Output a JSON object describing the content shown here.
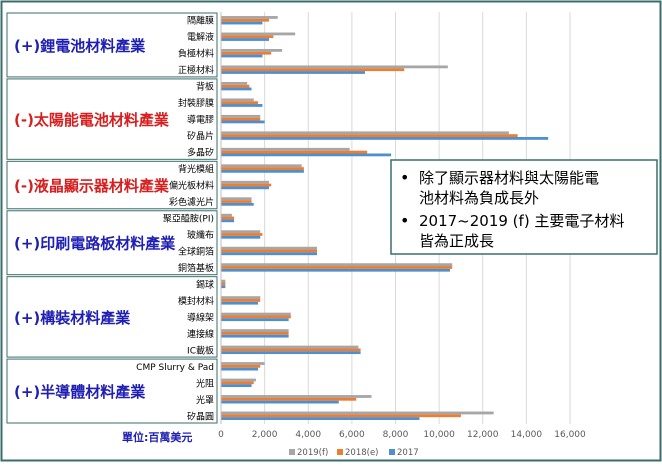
{
  "chart_data": {
    "type": "bar",
    "orientation": "horizontal",
    "unit_label": "單位:百萬美元",
    "x_ticks": [
      "0",
      "2,000",
      "4,000",
      "6,000",
      "8,000",
      "10,000",
      "12,000",
      "14,000",
      "16,000"
    ],
    "xlim": [
      0,
      16000
    ],
    "grid": true,
    "legend_position": "bottom",
    "colors": {
      "2019(f)": "#a6a6a6",
      "2018(e)": "#ed7d31",
      "2017": "#4e8fd0",
      "group_label": "#1f1fb4",
      "box_border": "#3a6e6e"
    },
    "series": [
      {
        "name": "2019(f)"
      },
      {
        "name": "2018(e)"
      },
      {
        "name": "2017"
      }
    ],
    "groups": [
      {
        "label": "(+)鋰電池材料產業",
        "color": "#1f1fb4",
        "categories": [
          {
            "name": "隔離膜",
            "values": [
              2600,
              2200,
              1900
            ]
          },
          {
            "name": "電解液",
            "values": [
              3400,
              2400,
              2200
            ]
          },
          {
            "name": "負極材料",
            "values": [
              2800,
              2300,
              1900
            ]
          },
          {
            "name": "正極材料",
            "values": [
              10400,
              8400,
              6600
            ]
          }
        ]
      },
      {
        "label": "(-)太陽能電池材料產業",
        "color": "#d81e1e",
        "categories": [
          {
            "name": "背板",
            "values": [
              1200,
              1300,
              1400
            ]
          },
          {
            "name": "封裝膠膜",
            "values": [
              1500,
              1700,
              1900
            ]
          },
          {
            "name": "導電膠",
            "values": [
              1800,
              1800,
              2000
            ]
          },
          {
            "name": "矽晶片",
            "values": [
              13200,
              13600,
              15000
            ]
          },
          {
            "name": "多晶矽",
            "values": [
              5900,
              6700,
              7800
            ]
          }
        ]
      },
      {
        "label": "(-)液晶顯示器材料產業",
        "color": "#d81e1e",
        "categories": [
          {
            "name": "背光模組",
            "values": [
              3700,
              3800,
              3800
            ]
          },
          {
            "name": "偏光板材料",
            "values": [
              2200,
              2300,
              2200
            ]
          },
          {
            "name": "彩色濾光片",
            "values": [
              1400,
              1400,
              1500
            ]
          }
        ]
      },
      {
        "label": "(+)印刷電路板材料產業",
        "color": "#1f1fb4",
        "categories": [
          {
            "name": "聚亞醯胺(PI)",
            "values": [
              500,
              600,
              600
            ]
          },
          {
            "name": "玻纖布",
            "values": [
              1800,
              1900,
              1800
            ]
          },
          {
            "name": "全球銅箔",
            "values": [
              4400,
              4400,
              4400
            ]
          },
          {
            "name": "銅箔基板",
            "values": [
              10600,
              10600,
              10500
            ]
          }
        ]
      },
      {
        "label": "(+)構裝材料產業",
        "color": "#1f1fb4",
        "categories": [
          {
            "name": "錫球",
            "values": [
              200,
              200,
              200
            ]
          },
          {
            "name": "模封材料",
            "values": [
              1800,
              1800,
              1700
            ]
          },
          {
            "name": "導線架",
            "values": [
              3200,
              3200,
              3100
            ]
          },
          {
            "name": "連接線",
            "values": [
              3100,
              3100,
              3100
            ]
          },
          {
            "name": "IC載板",
            "values": [
              6300,
              6400,
              6400
            ]
          }
        ]
      },
      {
        "label": "(+)半導體材料產業",
        "color": "#1f1fb4",
        "categories": [
          {
            "name": "CMP Slurry & Pad",
            "values": [
              2000,
              1800,
              1700
            ]
          },
          {
            "name": "光阻",
            "values": [
              1600,
              1500,
              1400
            ]
          },
          {
            "name": "光罩",
            "values": [
              6900,
              6200,
              5400
            ]
          },
          {
            "name": "矽晶圓",
            "values": [
              12500,
              11000,
              9100
            ]
          }
        ]
      }
    ]
  },
  "annotation": {
    "bullets": [
      "除了顯示器材料與太陽能電池材料為負成長外",
      "2017~2019 (f) 主要電子材料皆為正成長"
    ]
  }
}
